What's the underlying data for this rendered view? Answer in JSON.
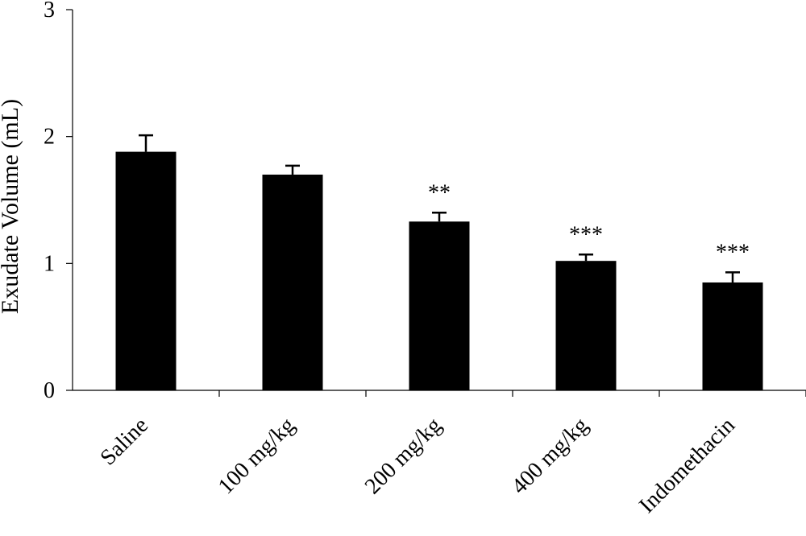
{
  "chart_data": {
    "type": "bar",
    "title": "",
    "xlabel": "",
    "ylabel": "Exudate Volume (mL)",
    "ylim": [
      0,
      3
    ],
    "yticks": [
      0,
      1,
      2,
      3
    ],
    "grid": false,
    "legend": "none",
    "bar_color": "#000000",
    "categories": [
      "Saline",
      "100 mg/kg",
      "200 mg/kg",
      "400 mg/kg",
      "Indomethacin"
    ],
    "values": [
      1.88,
      1.7,
      1.33,
      1.02,
      0.85
    ],
    "errors": [
      0.13,
      0.07,
      0.07,
      0.05,
      0.08
    ],
    "annotations": [
      "",
      "",
      "**",
      "***",
      "***"
    ]
  }
}
